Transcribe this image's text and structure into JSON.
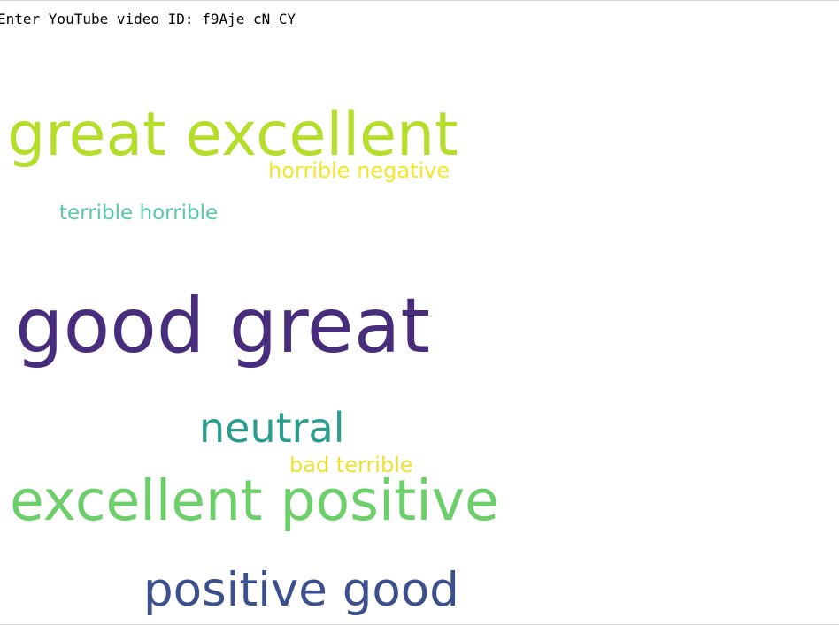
{
  "console": {
    "prompt": "Enter YouTube video ID: ",
    "input_value": "f9Aje_cN_CY"
  },
  "wordcloud": {
    "words": [
      {
        "text": "great excellent",
        "color": "#b5de2b"
      },
      {
        "text": "horrible negative",
        "color": "#f2e72b"
      },
      {
        "text": "terrible horrible",
        "color": "#5ac8a5"
      },
      {
        "text": "good great",
        "color": "#472d7b"
      },
      {
        "text": "neutral",
        "color": "#2a9d8f"
      },
      {
        "text": "bad terrible",
        "color": "#ece137"
      },
      {
        "text": "excellent positive",
        "color": "#6ccf6a"
      },
      {
        "text": "positive good",
        "color": "#3b4f8c"
      }
    ]
  }
}
